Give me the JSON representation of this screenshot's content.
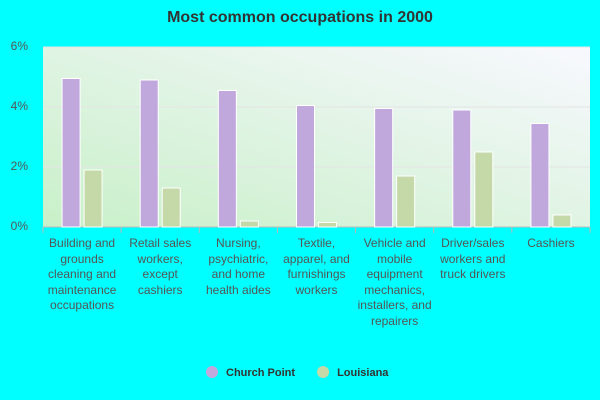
{
  "chart_data": {
    "type": "bar",
    "title": "Most common occupations in 2000",
    "categories": [
      "Building and grounds cleaning and maintenance occupations",
      "Retail sales workers, except cashiers",
      "Nursing, psychiatric, and home health aides",
      "Textile, apparel, and furnishings workers",
      "Vehicle and mobile equipment mechanics, installers, and repairers",
      "Driver/sales workers and truck drivers",
      "Cashiers"
    ],
    "series": [
      {
        "name": "Church Point",
        "color": "#c0a8dc",
        "values": [
          4.95,
          4.9,
          4.55,
          4.05,
          3.95,
          3.9,
          3.45
        ]
      },
      {
        "name": "Louisiana",
        "color": "#c5d8a8",
        "values": [
          1.9,
          1.3,
          0.2,
          0.15,
          1.7,
          2.5,
          0.4
        ]
      }
    ],
    "ylim": [
      0,
      6
    ],
    "yticks": [
      {
        "value": 0,
        "label": "0%"
      },
      {
        "value": 2,
        "label": "2%"
      },
      {
        "value": 4,
        "label": "4%"
      },
      {
        "value": 6,
        "label": "6%"
      }
    ],
    "grid": true
  }
}
